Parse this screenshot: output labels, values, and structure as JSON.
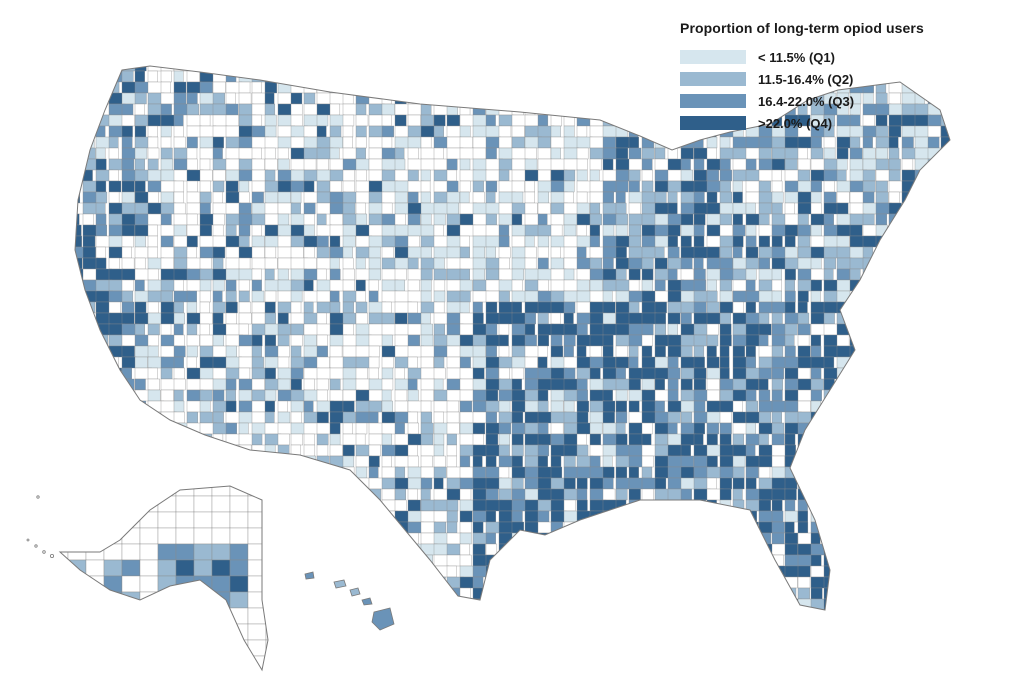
{
  "legend": {
    "title": "Proportion of long-term opiod users",
    "items": [
      {
        "label": "< 11.5% (Q1)",
        "color": "#d6e6ee"
      },
      {
        "label": "11.5-16.4% (Q2)",
        "color": "#9ab9d1"
      },
      {
        "label": "16.4-22.0% (Q3)",
        "color": "#6a93b8"
      },
      {
        "label": ">22.0% (Q4)",
        "color": "#2f5f8a"
      }
    ]
  },
  "colors": {
    "no_data": "#ffffff",
    "boundary": "#8a8a8a",
    "outline": "#7a7a7a"
  },
  "regions": [
    "contiguous-us",
    "alaska",
    "hawaii"
  ]
}
